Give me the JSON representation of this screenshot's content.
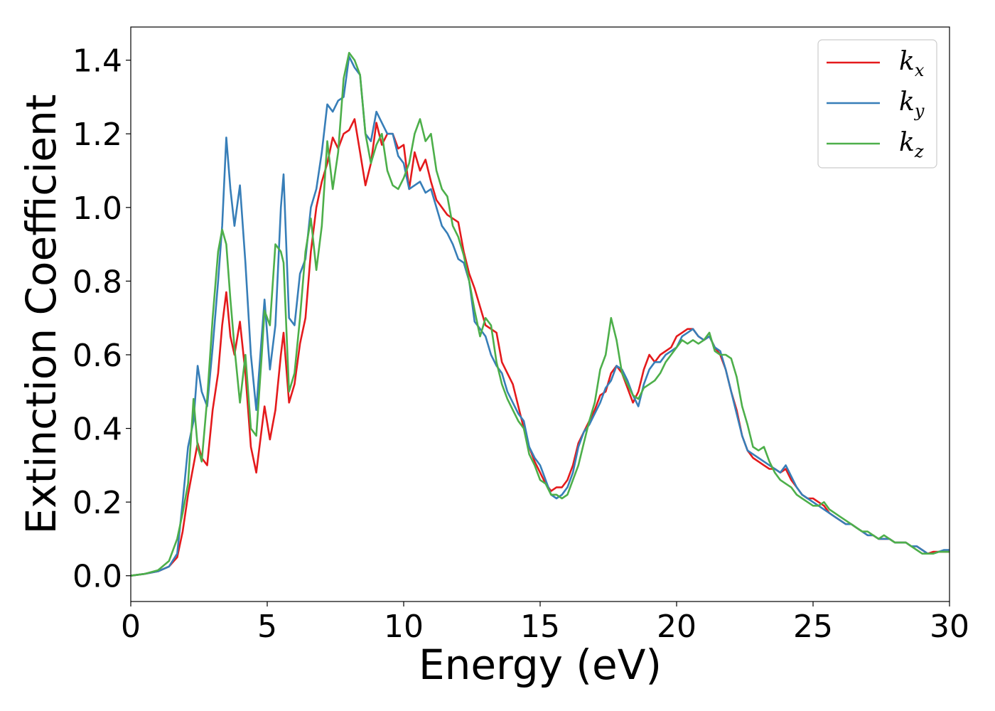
{
  "chart_data": {
    "type": "line",
    "title": "",
    "xlabel": "Energy (eV)",
    "ylabel": "Extinction Coefficient",
    "xlim": [
      0,
      30
    ],
    "ylim": [
      -0.07,
      1.49
    ],
    "xticks": [
      0,
      5,
      10,
      15,
      20,
      25,
      30
    ],
    "yticks": [
      "0.0",
      "0.2",
      "0.4",
      "0.6",
      "0.8",
      "1.0",
      "1.2",
      "1.4"
    ],
    "grid": false,
    "legend_position": "top-right",
    "series": [
      {
        "name": "k",
        "subscript": "x",
        "color": "#e41a1c",
        "x": [
          0,
          0.5,
          1.0,
          1.4,
          1.7,
          1.9,
          2.1,
          2.3,
          2.45,
          2.6,
          2.8,
          3.0,
          3.2,
          3.35,
          3.5,
          3.65,
          3.8,
          4.0,
          4.2,
          4.4,
          4.6,
          4.8,
          4.9,
          5.1,
          5.3,
          5.5,
          5.6,
          5.8,
          6.0,
          6.2,
          6.4,
          6.6,
          6.8,
          7.0,
          7.2,
          7.4,
          7.6,
          7.8,
          8.0,
          8.2,
          8.4,
          8.6,
          8.8,
          9.0,
          9.2,
          9.4,
          9.6,
          9.8,
          10.0,
          10.2,
          10.4,
          10.6,
          10.8,
          11.0,
          11.2,
          11.4,
          11.6,
          11.8,
          12.0,
          12.2,
          12.4,
          12.6,
          12.8,
          13.0,
          13.2,
          13.4,
          13.6,
          13.8,
          14.0,
          14.2,
          14.4,
          14.6,
          14.8,
          15.0,
          15.2,
          15.4,
          15.6,
          15.8,
          16.0,
          16.2,
          16.4,
          16.6,
          16.8,
          17.0,
          17.2,
          17.4,
          17.6,
          17.8,
          18.0,
          18.2,
          18.4,
          18.6,
          18.8,
          19.0,
          19.2,
          19.4,
          19.6,
          19.8,
          20.0,
          20.2,
          20.4,
          20.6,
          20.8,
          21.0,
          21.2,
          21.4,
          21.6,
          21.8,
          22.0,
          22.2,
          22.4,
          22.6,
          22.8,
          23.0,
          23.2,
          23.4,
          23.6,
          23.8,
          24.0,
          24.2,
          24.4,
          24.6,
          24.8,
          25.0,
          25.2,
          25.4,
          25.6,
          25.8,
          26.0,
          26.2,
          26.4,
          26.6,
          26.8,
          27.0,
          27.2,
          27.4,
          27.6,
          27.8,
          28.0,
          28.2,
          28.4,
          28.6,
          28.8,
          29.0,
          29.2,
          29.4,
          29.6,
          29.8,
          30.0
        ],
        "y": [
          0.0,
          0.005,
          0.012,
          0.025,
          0.05,
          0.12,
          0.22,
          0.3,
          0.36,
          0.32,
          0.3,
          0.45,
          0.55,
          0.68,
          0.77,
          0.65,
          0.6,
          0.69,
          0.55,
          0.35,
          0.28,
          0.4,
          0.46,
          0.37,
          0.45,
          0.6,
          0.66,
          0.47,
          0.52,
          0.63,
          0.7,
          0.88,
          1.0,
          1.07,
          1.12,
          1.19,
          1.16,
          1.2,
          1.21,
          1.24,
          1.15,
          1.06,
          1.12,
          1.23,
          1.17,
          1.2,
          1.2,
          1.16,
          1.17,
          1.05,
          1.15,
          1.1,
          1.13,
          1.07,
          1.02,
          1.0,
          0.98,
          0.97,
          0.96,
          0.88,
          0.82,
          0.78,
          0.73,
          0.68,
          0.67,
          0.66,
          0.58,
          0.55,
          0.52,
          0.46,
          0.4,
          0.35,
          0.31,
          0.28,
          0.25,
          0.23,
          0.24,
          0.24,
          0.26,
          0.3,
          0.36,
          0.39,
          0.42,
          0.45,
          0.49,
          0.5,
          0.55,
          0.57,
          0.55,
          0.51,
          0.47,
          0.5,
          0.56,
          0.6,
          0.58,
          0.6,
          0.61,
          0.62,
          0.65,
          0.66,
          0.67,
          0.67,
          0.65,
          0.64,
          0.65,
          0.62,
          0.6,
          0.56,
          0.5,
          0.45,
          0.38,
          0.34,
          0.32,
          0.31,
          0.3,
          0.29,
          0.29,
          0.28,
          0.29,
          0.26,
          0.24,
          0.22,
          0.21,
          0.21,
          0.2,
          0.19,
          0.17,
          0.16,
          0.15,
          0.14,
          0.14,
          0.13,
          0.12,
          0.11,
          0.11,
          0.1,
          0.1,
          0.1,
          0.09,
          0.09,
          0.09,
          0.08,
          0.08,
          0.07,
          0.06,
          0.065,
          0.065,
          0.065,
          0.065
        ]
      },
      {
        "name": "k",
        "subscript": "y",
        "color": "#377eb8",
        "x": [
          0,
          0.5,
          1.0,
          1.4,
          1.7,
          1.9,
          2.1,
          2.3,
          2.45,
          2.6,
          2.8,
          3.0,
          3.2,
          3.35,
          3.5,
          3.65,
          3.8,
          4.0,
          4.2,
          4.4,
          4.6,
          4.8,
          4.9,
          5.1,
          5.3,
          5.5,
          5.6,
          5.8,
          6.0,
          6.2,
          6.4,
          6.6,
          6.8,
          7.0,
          7.2,
          7.4,
          7.6,
          7.8,
          8.0,
          8.2,
          8.4,
          8.6,
          8.8,
          9.0,
          9.2,
          9.4,
          9.6,
          9.8,
          10.0,
          10.2,
          10.4,
          10.6,
          10.8,
          11.0,
          11.2,
          11.4,
          11.6,
          11.8,
          12.0,
          12.2,
          12.4,
          12.6,
          12.8,
          13.0,
          13.2,
          13.4,
          13.6,
          13.8,
          14.0,
          14.2,
          14.4,
          14.6,
          14.8,
          15.0,
          15.2,
          15.4,
          15.6,
          15.8,
          16.0,
          16.2,
          16.4,
          16.6,
          16.8,
          17.0,
          17.2,
          17.4,
          17.6,
          17.8,
          18.0,
          18.2,
          18.4,
          18.6,
          18.8,
          19.0,
          19.2,
          19.4,
          19.6,
          19.8,
          20.0,
          20.2,
          20.4,
          20.6,
          20.8,
          21.0,
          21.2,
          21.4,
          21.6,
          21.8,
          22.0,
          22.2,
          22.4,
          22.6,
          22.8,
          23.0,
          23.2,
          23.4,
          23.6,
          23.8,
          24.0,
          24.2,
          24.4,
          24.6,
          24.8,
          25.0,
          25.2,
          25.4,
          25.6,
          25.8,
          26.0,
          26.2,
          26.4,
          26.6,
          26.8,
          27.0,
          27.2,
          27.4,
          27.6,
          27.8,
          28.0,
          28.2,
          28.4,
          28.6,
          28.8,
          29.0,
          29.2,
          29.4,
          29.6,
          29.8,
          30.0
        ],
        "y": [
          0.0,
          0.005,
          0.012,
          0.025,
          0.06,
          0.2,
          0.35,
          0.42,
          0.57,
          0.5,
          0.46,
          0.62,
          0.8,
          0.95,
          1.19,
          1.05,
          0.95,
          1.06,
          0.85,
          0.6,
          0.45,
          0.65,
          0.75,
          0.56,
          0.68,
          1.0,
          1.09,
          0.7,
          0.68,
          0.82,
          0.86,
          1.0,
          1.05,
          1.15,
          1.28,
          1.26,
          1.29,
          1.3,
          1.41,
          1.38,
          1.36,
          1.2,
          1.18,
          1.26,
          1.23,
          1.2,
          1.2,
          1.14,
          1.12,
          1.05,
          1.06,
          1.07,
          1.04,
          1.05,
          1.0,
          0.95,
          0.93,
          0.9,
          0.86,
          0.85,
          0.8,
          0.69,
          0.67,
          0.65,
          0.6,
          0.57,
          0.55,
          0.5,
          0.47,
          0.44,
          0.42,
          0.35,
          0.32,
          0.3,
          0.26,
          0.22,
          0.21,
          0.22,
          0.24,
          0.28,
          0.35,
          0.39,
          0.41,
          0.44,
          0.47,
          0.51,
          0.53,
          0.57,
          0.56,
          0.53,
          0.49,
          0.46,
          0.52,
          0.56,
          0.58,
          0.58,
          0.6,
          0.61,
          0.62,
          0.65,
          0.66,
          0.67,
          0.65,
          0.64,
          0.65,
          0.62,
          0.61,
          0.56,
          0.5,
          0.44,
          0.38,
          0.34,
          0.33,
          0.32,
          0.31,
          0.3,
          0.29,
          0.28,
          0.3,
          0.27,
          0.24,
          0.22,
          0.21,
          0.2,
          0.19,
          0.18,
          0.17,
          0.16,
          0.15,
          0.14,
          0.14,
          0.13,
          0.12,
          0.11,
          0.11,
          0.1,
          0.1,
          0.1,
          0.09,
          0.09,
          0.09,
          0.08,
          0.08,
          0.07,
          0.06,
          0.06,
          0.065,
          0.07,
          0.07
        ]
      },
      {
        "name": "k",
        "subscript": "z",
        "color": "#4daf4a",
        "x": [
          0,
          0.5,
          1.0,
          1.4,
          1.7,
          1.9,
          2.1,
          2.3,
          2.45,
          2.6,
          2.8,
          3.0,
          3.2,
          3.35,
          3.5,
          3.65,
          3.8,
          4.0,
          4.2,
          4.4,
          4.6,
          4.8,
          4.9,
          5.1,
          5.3,
          5.5,
          5.6,
          5.8,
          6.0,
          6.2,
          6.4,
          6.6,
          6.8,
          7.0,
          7.2,
          7.4,
          7.6,
          7.8,
          8.0,
          8.2,
          8.4,
          8.6,
          8.8,
          9.0,
          9.2,
          9.4,
          9.6,
          9.8,
          10.0,
          10.2,
          10.4,
          10.6,
          10.8,
          11.0,
          11.2,
          11.4,
          11.6,
          11.8,
          12.0,
          12.2,
          12.4,
          12.6,
          12.8,
          13.0,
          13.2,
          13.4,
          13.6,
          13.8,
          14.0,
          14.2,
          14.4,
          14.6,
          14.8,
          15.0,
          15.2,
          15.4,
          15.6,
          15.8,
          16.0,
          16.2,
          16.4,
          16.6,
          16.8,
          17.0,
          17.2,
          17.4,
          17.6,
          17.8,
          18.0,
          18.2,
          18.4,
          18.6,
          18.8,
          19.0,
          19.2,
          19.4,
          19.6,
          19.8,
          20.0,
          20.2,
          20.4,
          20.6,
          20.8,
          21.0,
          21.2,
          21.4,
          21.6,
          21.8,
          22.0,
          22.2,
          22.4,
          22.6,
          22.8,
          23.0,
          23.2,
          23.4,
          23.6,
          23.8,
          24.0,
          24.2,
          24.4,
          24.6,
          24.8,
          25.0,
          25.2,
          25.4,
          25.6,
          25.8,
          26.0,
          26.2,
          26.4,
          26.6,
          26.8,
          27.0,
          27.2,
          27.4,
          27.6,
          27.8,
          28.0,
          28.2,
          28.4,
          28.6,
          28.8,
          29.0,
          29.2,
          29.4,
          29.6,
          29.8,
          30.0
        ],
        "y": [
          0.0,
          0.005,
          0.015,
          0.04,
          0.1,
          0.17,
          0.25,
          0.48,
          0.35,
          0.31,
          0.48,
          0.7,
          0.88,
          0.94,
          0.9,
          0.75,
          0.62,
          0.47,
          0.6,
          0.4,
          0.38,
          0.6,
          0.72,
          0.68,
          0.9,
          0.88,
          0.85,
          0.5,
          0.55,
          0.7,
          0.88,
          0.97,
          0.83,
          0.95,
          1.18,
          1.05,
          1.15,
          1.35,
          1.42,
          1.4,
          1.36,
          1.2,
          1.12,
          1.17,
          1.2,
          1.1,
          1.06,
          1.05,
          1.08,
          1.12,
          1.2,
          1.24,
          1.18,
          1.2,
          1.1,
          1.05,
          1.03,
          0.95,
          0.92,
          0.87,
          0.8,
          0.72,
          0.65,
          0.7,
          0.68,
          0.58,
          0.52,
          0.48,
          0.45,
          0.42,
          0.4,
          0.33,
          0.3,
          0.26,
          0.25,
          0.22,
          0.22,
          0.21,
          0.22,
          0.26,
          0.3,
          0.36,
          0.42,
          0.47,
          0.56,
          0.6,
          0.7,
          0.64,
          0.55,
          0.52,
          0.49,
          0.48,
          0.51,
          0.52,
          0.53,
          0.55,
          0.58,
          0.6,
          0.62,
          0.64,
          0.63,
          0.64,
          0.63,
          0.64,
          0.66,
          0.61,
          0.6,
          0.6,
          0.59,
          0.54,
          0.46,
          0.41,
          0.35,
          0.34,
          0.35,
          0.31,
          0.28,
          0.26,
          0.25,
          0.24,
          0.22,
          0.21,
          0.2,
          0.19,
          0.19,
          0.2,
          0.18,
          0.17,
          0.16,
          0.15,
          0.14,
          0.13,
          0.12,
          0.12,
          0.11,
          0.1,
          0.11,
          0.1,
          0.09,
          0.09,
          0.09,
          0.08,
          0.07,
          0.06,
          0.06,
          0.06,
          0.065,
          0.065,
          0.065
        ]
      }
    ]
  }
}
